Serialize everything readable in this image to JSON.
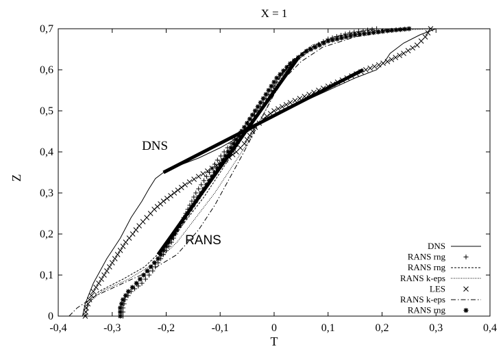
{
  "chart_data": {
    "type": "line",
    "title": "X = 1",
    "xlabel": "T",
    "ylabel": "Z",
    "xlim": [
      -0.4,
      0.4
    ],
    "ylim": [
      0,
      0.7
    ],
    "xticks": [
      "-0,4",
      "-0,3",
      "-0,2",
      "-0,1",
      "0",
      "0,1",
      "0,2",
      "0,3",
      "0,4"
    ],
    "yticks": [
      "0",
      "0,1",
      "0,2",
      "0,3",
      "0,4",
      "0,5",
      "0,6",
      "0,7"
    ],
    "grid": false,
    "legend_position": "bottom-right",
    "series": [
      {
        "name": "DNS",
        "style": "solid",
        "marker": "",
        "points": [
          [
            -0.355,
            0.0
          ],
          [
            -0.35,
            0.03
          ],
          [
            -0.335,
            0.08
          ],
          [
            -0.31,
            0.14
          ],
          [
            -0.285,
            0.19
          ],
          [
            -0.265,
            0.24
          ],
          [
            -0.245,
            0.28
          ],
          [
            -0.232,
            0.31
          ],
          [
            -0.22,
            0.335
          ],
          [
            -0.205,
            0.35
          ],
          [
            -0.18,
            0.365
          ],
          [
            -0.14,
            0.385
          ],
          [
            -0.1,
            0.41
          ],
          [
            -0.06,
            0.44
          ],
          [
            -0.03,
            0.465
          ],
          [
            0.0,
            0.485
          ],
          [
            0.05,
            0.52
          ],
          [
            0.1,
            0.55
          ],
          [
            0.15,
            0.58
          ],
          [
            0.19,
            0.6
          ],
          [
            0.205,
            0.62
          ],
          [
            0.215,
            0.64
          ],
          [
            0.24,
            0.665
          ],
          [
            0.27,
            0.685
          ],
          [
            0.3,
            0.7
          ]
        ]
      },
      {
        "name": "RANS rng",
        "style": "marker",
        "marker": "+",
        "points": [
          [
            -0.28,
            0.0
          ],
          [
            -0.28,
            0.02
          ],
          [
            -0.276,
            0.04
          ],
          [
            -0.265,
            0.06
          ],
          [
            -0.245,
            0.08
          ],
          [
            -0.225,
            0.11
          ],
          [
            -0.205,
            0.15
          ],
          [
            -0.19,
            0.18
          ],
          [
            -0.175,
            0.22
          ],
          [
            -0.16,
            0.26
          ],
          [
            -0.145,
            0.3
          ],
          [
            -0.125,
            0.34
          ],
          [
            -0.105,
            0.38
          ],
          [
            -0.08,
            0.42
          ],
          [
            -0.055,
            0.46
          ],
          [
            -0.03,
            0.5
          ],
          [
            -0.01,
            0.54
          ],
          [
            0.01,
            0.58
          ],
          [
            0.035,
            0.62
          ],
          [
            0.065,
            0.65
          ],
          [
            0.1,
            0.675
          ],
          [
            0.14,
            0.69
          ],
          [
            0.19,
            0.7
          ]
        ]
      },
      {
        "name": "RANS rng",
        "style": "dashed",
        "marker": "",
        "points": [
          [
            -0.35,
            0.0
          ],
          [
            -0.345,
            0.03
          ],
          [
            -0.325,
            0.06
          ],
          [
            -0.28,
            0.09
          ],
          [
            -0.24,
            0.12
          ],
          [
            -0.2,
            0.17
          ],
          [
            -0.165,
            0.23
          ],
          [
            -0.13,
            0.29
          ],
          [
            -0.1,
            0.35
          ],
          [
            -0.07,
            0.41
          ],
          [
            -0.04,
            0.47
          ],
          [
            -0.015,
            0.52
          ],
          [
            0.005,
            0.57
          ],
          [
            0.025,
            0.61
          ],
          [
            0.06,
            0.65
          ],
          [
            0.11,
            0.68
          ],
          [
            0.17,
            0.695
          ],
          [
            0.25,
            0.7
          ]
        ]
      },
      {
        "name": "RANS k-eps",
        "style": "dotted",
        "marker": "",
        "points": [
          [
            -0.35,
            0.0
          ],
          [
            -0.345,
            0.03
          ],
          [
            -0.32,
            0.06
          ],
          [
            -0.27,
            0.09
          ],
          [
            -0.22,
            0.13
          ],
          [
            -0.18,
            0.18
          ],
          [
            -0.145,
            0.24
          ],
          [
            -0.11,
            0.3
          ],
          [
            -0.08,
            0.36
          ],
          [
            -0.05,
            0.42
          ],
          [
            -0.025,
            0.48
          ],
          [
            -0.005,
            0.53
          ],
          [
            0.015,
            0.58
          ],
          [
            0.035,
            0.62
          ],
          [
            0.07,
            0.66
          ],
          [
            0.13,
            0.685
          ],
          [
            0.2,
            0.695
          ],
          [
            0.3,
            0.7
          ]
        ]
      },
      {
        "name": "LES",
        "style": "marker",
        "marker": "x",
        "points": [
          [
            -0.35,
            0.0
          ],
          [
            -0.348,
            0.02
          ],
          [
            -0.342,
            0.04
          ],
          [
            -0.335,
            0.06
          ],
          [
            -0.325,
            0.08
          ],
          [
            -0.315,
            0.1
          ],
          [
            -0.305,
            0.12
          ],
          [
            -0.295,
            0.14
          ],
          [
            -0.285,
            0.16
          ],
          [
            -0.275,
            0.18
          ],
          [
            -0.262,
            0.2
          ],
          [
            -0.25,
            0.22
          ],
          [
            -0.236,
            0.24
          ],
          [
            -0.222,
            0.26
          ],
          [
            -0.205,
            0.28
          ],
          [
            -0.185,
            0.3
          ],
          [
            -0.165,
            0.32
          ],
          [
            -0.14,
            0.34
          ],
          [
            -0.115,
            0.36
          ],
          [
            -0.09,
            0.38
          ],
          [
            -0.07,
            0.4
          ],
          [
            -0.055,
            0.42
          ],
          [
            -0.045,
            0.44
          ],
          [
            -0.035,
            0.46
          ],
          [
            -0.02,
            0.48
          ],
          [
            0.0,
            0.5
          ],
          [
            0.03,
            0.52
          ],
          [
            0.065,
            0.54
          ],
          [
            0.1,
            0.56
          ],
          [
            0.135,
            0.58
          ],
          [
            0.17,
            0.6
          ],
          [
            0.21,
            0.62
          ],
          [
            0.24,
            0.64
          ],
          [
            0.265,
            0.66
          ],
          [
            0.28,
            0.68
          ],
          [
            0.29,
            0.7
          ]
        ]
      },
      {
        "name": "RANS k-eps",
        "style": "dash-dot",
        "marker": "",
        "points": [
          [
            -0.38,
            0.0
          ],
          [
            -0.365,
            0.02
          ],
          [
            -0.33,
            0.05
          ],
          [
            -0.28,
            0.08
          ],
          [
            -0.23,
            0.11
          ],
          [
            -0.18,
            0.15
          ],
          [
            -0.14,
            0.21
          ],
          [
            -0.11,
            0.27
          ],
          [
            -0.085,
            0.33
          ],
          [
            -0.06,
            0.39
          ],
          [
            -0.04,
            0.44
          ],
          [
            -0.02,
            0.49
          ],
          [
            0.0,
            0.54
          ],
          [
            0.02,
            0.58
          ],
          [
            0.05,
            0.62
          ],
          [
            0.09,
            0.655
          ],
          [
            0.15,
            0.68
          ],
          [
            0.22,
            0.695
          ],
          [
            0.26,
            0.7
          ]
        ]
      },
      {
        "name": "RANS rng",
        "style": "marker",
        "marker": "*",
        "points": [
          [
            -0.285,
            0.0
          ],
          [
            -0.285,
            0.02
          ],
          [
            -0.28,
            0.04
          ],
          [
            -0.27,
            0.06
          ],
          [
            -0.255,
            0.08
          ],
          [
            -0.235,
            0.11
          ],
          [
            -0.215,
            0.14
          ],
          [
            -0.2,
            0.17
          ],
          [
            -0.18,
            0.21
          ],
          [
            -0.16,
            0.25
          ],
          [
            -0.135,
            0.3
          ],
          [
            -0.11,
            0.35
          ],
          [
            -0.085,
            0.4
          ],
          [
            -0.06,
            0.45
          ],
          [
            -0.035,
            0.5
          ],
          [
            -0.015,
            0.54
          ],
          [
            0.005,
            0.58
          ],
          [
            0.03,
            0.615
          ],
          [
            0.06,
            0.645
          ],
          [
            0.1,
            0.67
          ],
          [
            0.15,
            0.685
          ],
          [
            0.21,
            0.695
          ],
          [
            0.25,
            0.7
          ]
        ]
      }
    ],
    "fit_lines": [
      {
        "from": [
          -0.205,
          0.35
        ],
        "to": [
          0.165,
          0.6
        ]
      },
      {
        "from": [
          -0.215,
          0.15
        ],
        "to": [
          0.045,
          0.63
        ]
      }
    ],
    "annotations": [
      {
        "text": "DNS",
        "x": -0.245,
        "y": 0.405,
        "style": "serif"
      },
      {
        "text": "RANS",
        "x": -0.165,
        "y": 0.175,
        "style": "sans"
      }
    ]
  }
}
